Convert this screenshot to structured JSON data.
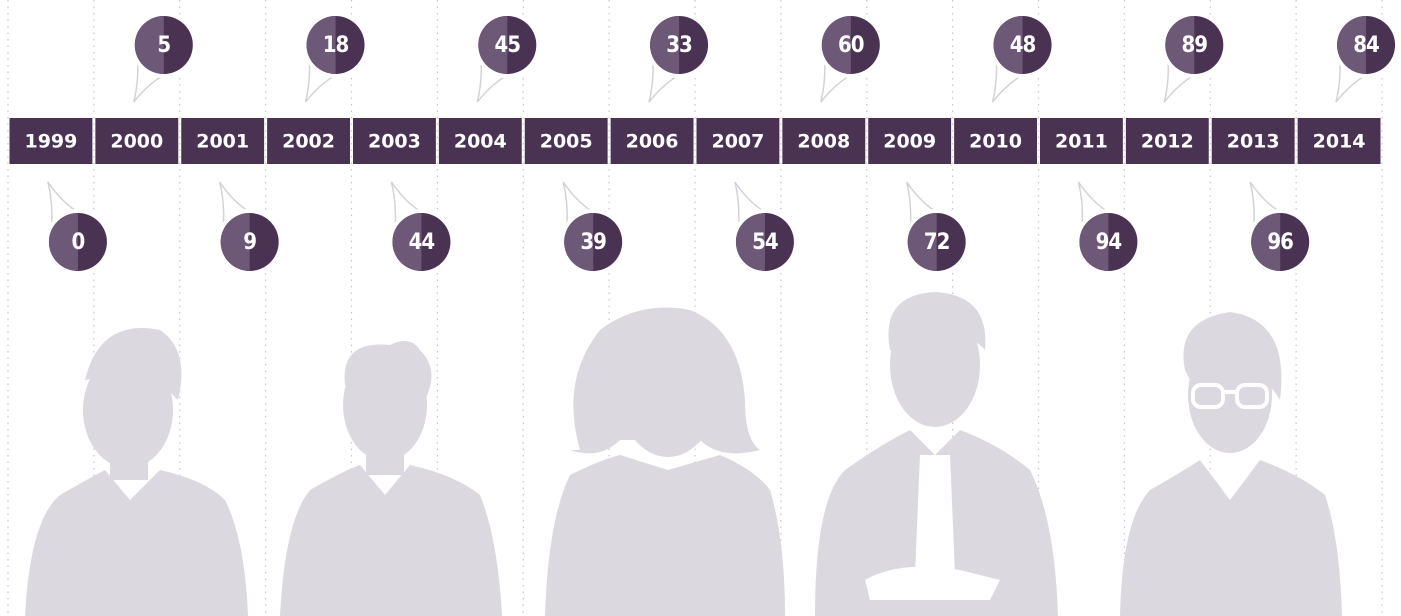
{
  "years": [
    "1999",
    "2000",
    "2001",
    "2002",
    "2003",
    "2004",
    "2005",
    "2006",
    "2007",
    "2008",
    "2009",
    "2010",
    "2011",
    "2012",
    "2013",
    "2014"
  ],
  "values": [
    0,
    5,
    9,
    18,
    44,
    45,
    39,
    33,
    54,
    60,
    72,
    48,
    94,
    89,
    96,
    84
  ]
}
